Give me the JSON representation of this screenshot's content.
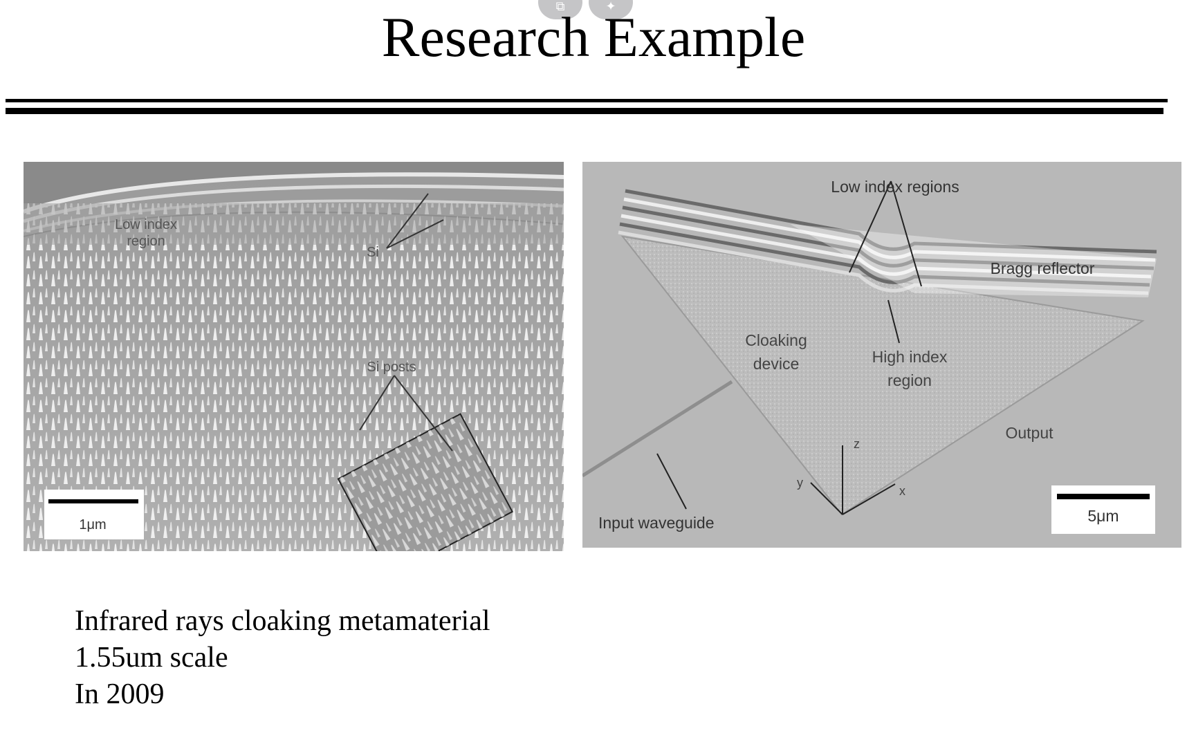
{
  "slide": {
    "title": "Research Example",
    "caption_lines": [
      "Infrared rays cloaking metamaterial",
      "1.55um scale",
      "In 2009"
    ]
  },
  "toolbar": {
    "copy_icon": "copy-icon",
    "ai_icon": "sparkle-icon"
  },
  "figure_left": {
    "labels": {
      "low_index": "Low index",
      "low_index_2": "region",
      "si": "Si",
      "si_posts": "Si posts",
      "scale": "1μm"
    }
  },
  "figure_right": {
    "labels": {
      "low_index_regions": "Low index regions",
      "bragg": "Bragg reflector",
      "cloaking": "Cloaking",
      "cloaking_2": "device",
      "high_index": "High index",
      "high_index_2": "region",
      "output": "Output",
      "input": "Input waveguide",
      "axis_z": "z",
      "axis_y": "y",
      "axis_x": "x",
      "scale": "5μm"
    }
  },
  "colors": {
    "background": "#ffffff",
    "sem_left_bg": "#a9a9a9",
    "sem_right_bg": "#b8b8b8"
  }
}
